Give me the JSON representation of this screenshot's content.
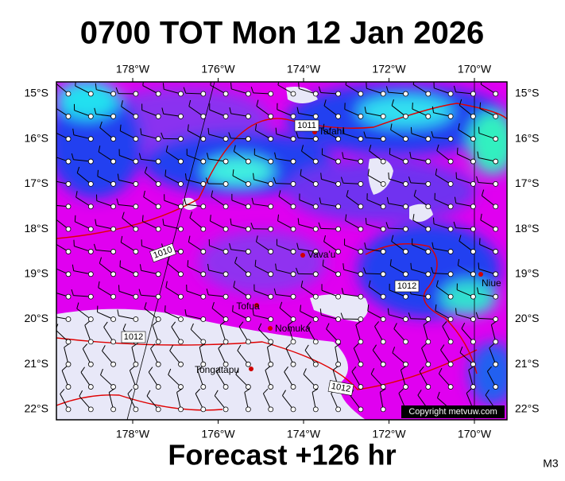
{
  "title": "0700 TOT Mon 12 Jan 2026",
  "axes": {
    "top": [
      "178°W",
      "176°W",
      "174°W",
      "172°W",
      "170°W"
    ],
    "bottom": [
      "178°W",
      "176°W",
      "174°W",
      "172°W",
      "170°W"
    ],
    "left": [
      "15°S",
      "16°S",
      "17°S",
      "18°S",
      "19°S",
      "20°S",
      "21°S",
      "22°S"
    ],
    "right": [
      "15°S",
      "16°S",
      "17°S",
      "18°S",
      "19°S",
      "20°S",
      "21°S",
      "22°S"
    ]
  },
  "places": [
    "Tafahi",
    "Vava'u",
    "Niue",
    "Tofua",
    "Nomuka",
    "Tongatapu"
  ],
  "isobars": [
    "1011",
    "1010",
    "1012",
    "1012",
    "1012"
  ],
  "copyright": "Copyright metvuw.com",
  "footer": "Forecast +126 hr",
  "code": "M3"
}
